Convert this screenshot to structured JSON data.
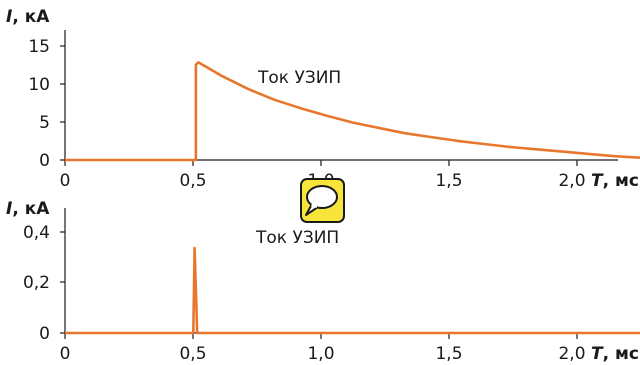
{
  "chart_data": [
    {
      "type": "line",
      "ylabel_var": "I",
      "ylabel_unit": ", кА",
      "xlabel_var": "T",
      "xlabel_unit": ", мс",
      "annotation": "Ток УЗИП",
      "xlim": [
        0,
        2.2
      ],
      "ylim": [
        0,
        16
      ],
      "x_ticks": [
        0,
        0.5,
        1.0,
        1.5,
        2.0
      ],
      "x_tick_labels": [
        "0",
        "0,5",
        "1,0",
        "1,5",
        "2,0"
      ],
      "y_ticks": [
        0,
        5,
        10,
        15
      ],
      "y_tick_labels": [
        "0",
        "5",
        "10",
        "15"
      ],
      "series": [
        {
          "x": [
            0,
            0.5,
            0.5,
            0.51,
            0.55,
            0.6,
            0.7,
            0.8,
            0.9,
            1.0,
            1.1,
            1.2,
            1.3,
            1.4,
            1.5,
            1.6,
            1.7,
            1.8,
            1.9,
            2.0,
            2.1,
            2.2
          ],
          "y": [
            0,
            0,
            12.5,
            12.8,
            12.0,
            11.0,
            9.3,
            7.9,
            6.8,
            5.8,
            4.9,
            4.2,
            3.5,
            3.0,
            2.5,
            2.1,
            1.7,
            1.4,
            1.1,
            0.8,
            0.5,
            0.3
          ]
        }
      ]
    },
    {
      "type": "line",
      "ylabel_var": "I",
      "ylabel_unit": ", кА",
      "xlabel_var": "T",
      "xlabel_unit": ", мс",
      "annotation": "Ток УЗИП",
      "xlim": [
        0,
        2.2
      ],
      "ylim": [
        0,
        0.5
      ],
      "x_ticks": [
        0,
        0.5,
        1.0,
        1.5,
        2.0
      ],
      "x_tick_labels": [
        "0",
        "0,5",
        "1,0",
        "1,5",
        "2,0"
      ],
      "y_ticks": [
        0,
        0.2,
        0.4
      ],
      "y_tick_labels": [
        "0",
        "0,2",
        "0,4"
      ],
      "series": [
        {
          "x": [
            0,
            0.49,
            0.495,
            0.505,
            0.51,
            2.2
          ],
          "y": [
            0,
            0,
            0.34,
            0,
            0,
            0
          ]
        }
      ]
    }
  ],
  "badge": {
    "icon": "speech-bubble-icon",
    "color": "#f7e53b"
  },
  "colors": {
    "series": "#e8772e",
    "axis": "#1a1a1a"
  }
}
